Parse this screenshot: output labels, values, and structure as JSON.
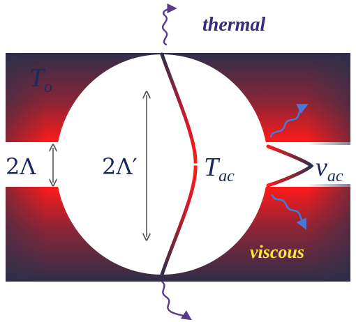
{
  "labels": {
    "thermal": "thermal",
    "viscous": "viscous",
    "t_o_main": "T",
    "t_o_sub": "o",
    "t_ac_main": "T",
    "t_ac_sub": "ac",
    "v_ac_main": "v",
    "v_ac_sub": "ac",
    "two_lambda": "2Λ",
    "two_lambda_prime": "2Λ′"
  },
  "colors": {
    "material_dark": "#2e2f4a",
    "material_red": "#ff1a1a",
    "label_navy": "#1b2a5c",
    "label_purple": "#3a2a78",
    "viscous_yellow": "#ffe63a",
    "wave_blue": "#4a78d8",
    "wave_purple": "#5a3a8a",
    "arrow_gray": "#555555"
  },
  "icons": {
    "thermal_wave_top": "squiggle-arrow-icon",
    "thermal_wave_bottom": "squiggle-arrow-icon",
    "viscous_wave_upper": "squiggle-arrow-icon",
    "viscous_wave_lower": "squiggle-arrow-icon"
  }
}
